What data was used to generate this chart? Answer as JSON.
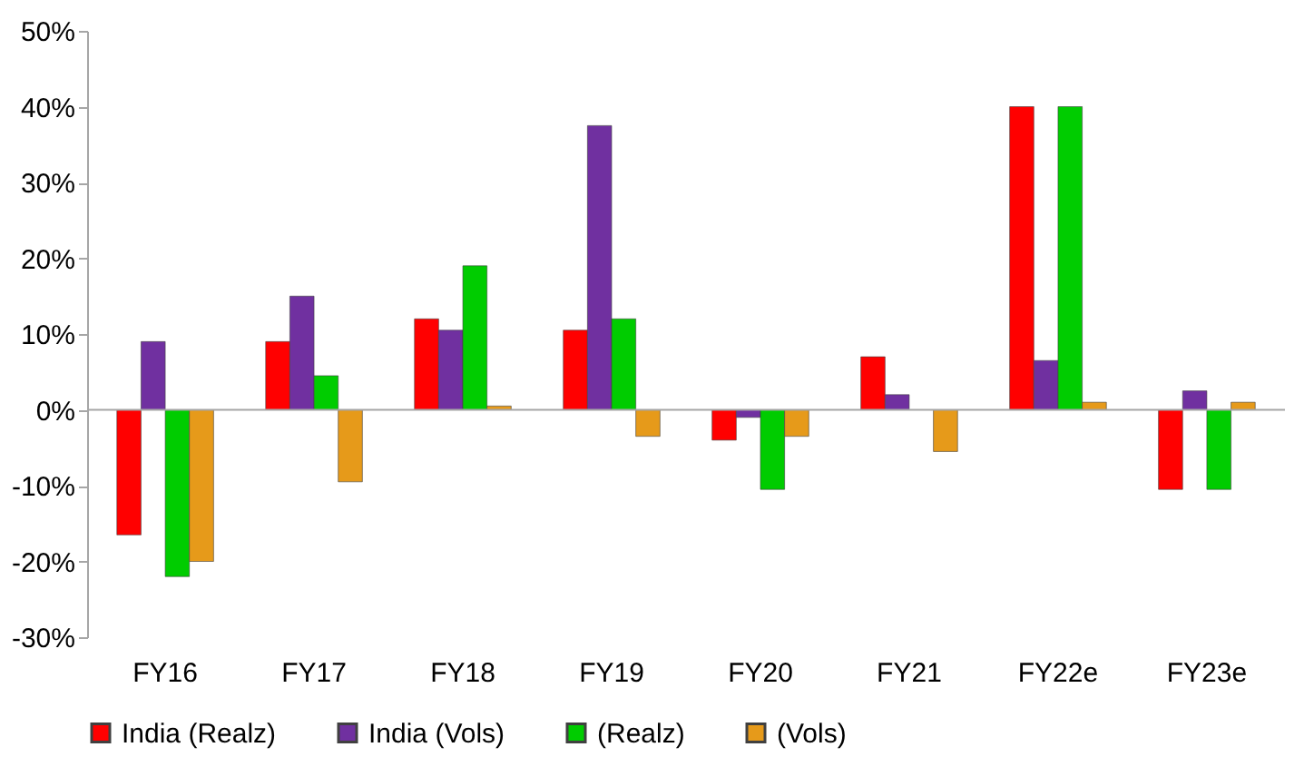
{
  "chart_data": {
    "type": "bar",
    "categories": [
      "FY16",
      "FY17",
      "FY18",
      "FY19",
      "FY20",
      "FY21",
      "FY22e",
      "FY23e"
    ],
    "series": [
      {
        "name": "India (Realz)",
        "color": "#ff0000",
        "values": [
          -16.5,
          9,
          12,
          10.5,
          -4,
          7,
          40,
          -10.5
        ]
      },
      {
        "name": "India (Vols)",
        "color": "#7030a0",
        "values": [
          9,
          15,
          10.5,
          37.5,
          -1,
          2,
          6.5,
          2.5
        ]
      },
      {
        "name": "(Realz)",
        "color": "#00cc00",
        "values": [
          -22,
          4.5,
          19,
          12,
          -10.5,
          null,
          40,
          -10.5
        ]
      },
      {
        "name": "(Vols)",
        "color": "#e69a1a",
        "values": [
          -20,
          -9.5,
          0.5,
          -3.5,
          -3.5,
          -5.5,
          1,
          1
        ]
      }
    ],
    "ylim": [
      -30,
      50
    ],
    "yticks": [
      {
        "value": -30,
        "label": "-30%"
      },
      {
        "value": -20,
        "label": "-20%"
      },
      {
        "value": -10,
        "label": "-10%"
      },
      {
        "value": 0,
        "label": "0%"
      },
      {
        "value": 10,
        "label": "10%"
      },
      {
        "value": 20,
        "label": "20%"
      },
      {
        "value": 30,
        "label": "30%"
      },
      {
        "value": 40,
        "label": "40%"
      },
      {
        "value": 50,
        "label": "50%"
      }
    ],
    "ref_lines": [
      {
        "axis": "y",
        "value": 0,
        "color": "#a6a6a6"
      }
    ],
    "grid": false,
    "legend": "bottom"
  }
}
